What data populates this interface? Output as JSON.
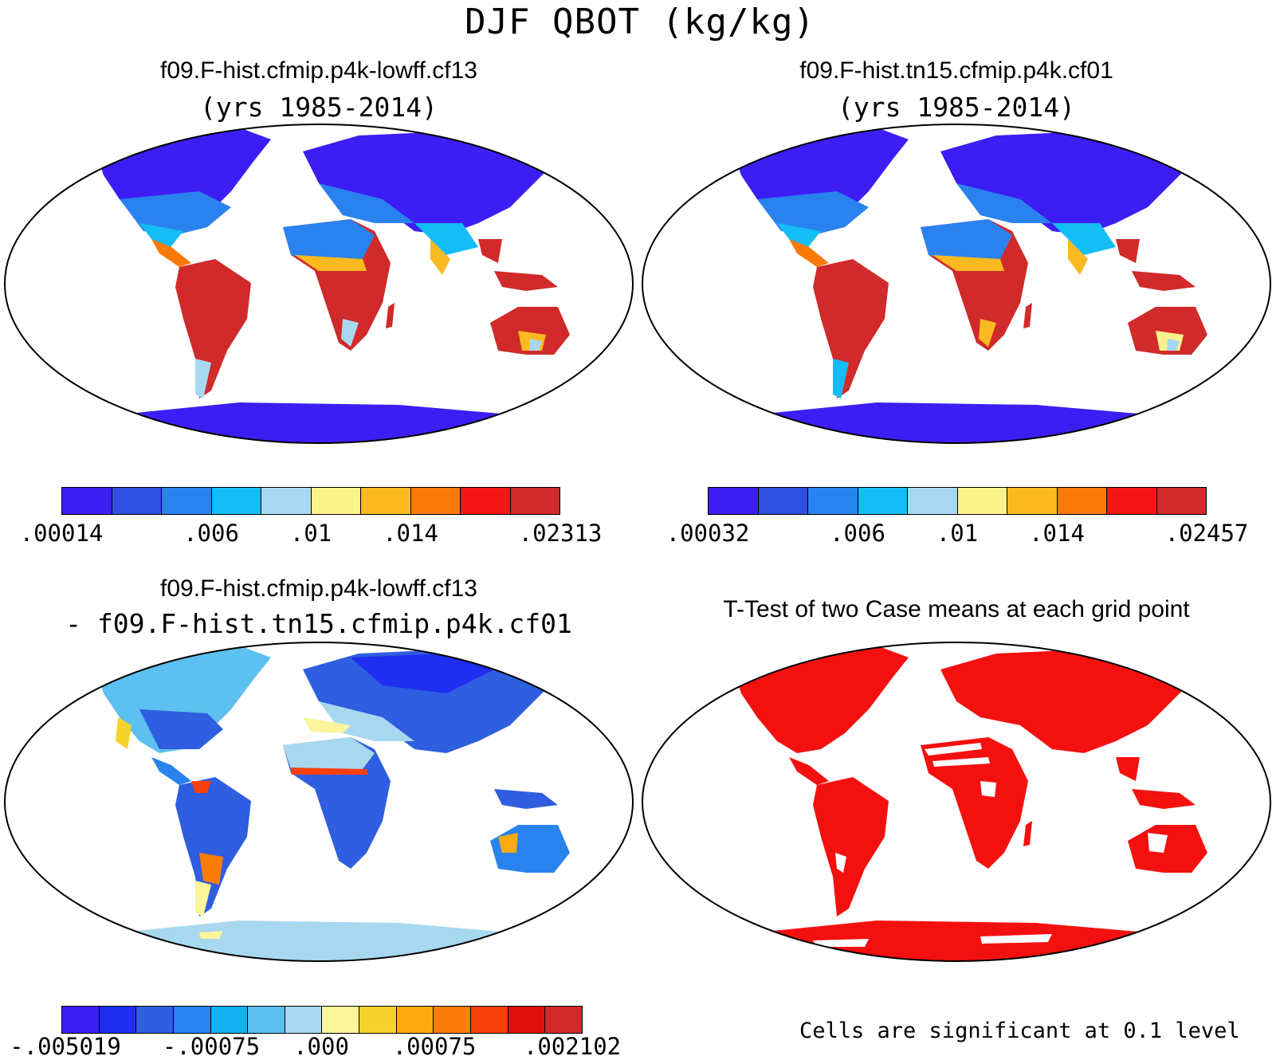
{
  "figure": {
    "title": "DJF QBOT (kg/kg)"
  },
  "panels": [
    {
      "id": "top-left",
      "title_line1": "f09.F-hist.cfmip.p4k-lowff.cf13",
      "title_line2": "(yrs 1985-2014)",
      "colorbar": {
        "colors": [
          "#3c1ef5",
          "#2f4fe0",
          "#2a82ef",
          "#14bdf5",
          "#a8d8f0",
          "#fbf28c",
          "#fbba1f",
          "#fb7a05",
          "#f5161a",
          "#d12a2a"
        ],
        "labels": [
          ".00014",
          ".006",
          ".01",
          ".014",
          ".02313"
        ]
      }
    },
    {
      "id": "top-right",
      "title_line1": "f09.F-hist.tn15.cfmip.p4k.cf01",
      "title_line2": "(yrs 1985-2014)",
      "colorbar": {
        "colors": [
          "#3c1ef5",
          "#2f4fe0",
          "#2a82ef",
          "#14bdf5",
          "#a8d8f0",
          "#fbf28c",
          "#fbba1f",
          "#fb7a05",
          "#f5161a",
          "#d12a2a"
        ],
        "labels": [
          ".00032",
          ".006",
          ".01",
          ".014",
          ".02457"
        ]
      }
    },
    {
      "id": "bottom-left",
      "title_line1": "f09.F-hist.cfmip.p4k-lowff.cf13",
      "title_line2": "- f09.F-hist.tn15.cfmip.p4k.cf01",
      "colorbar": {
        "colors": [
          "#3c1ef5",
          "#1f2ef0",
          "#2f5ee0",
          "#2a82ef",
          "#14b2f5",
          "#5cc0f0",
          "#a8d8f0",
          "#fbf59c",
          "#f6d22a",
          "#fbaa10",
          "#fb7d08",
          "#f8400c",
          "#e00f0f",
          "#d12a2a"
        ],
        "labels": [
          "-.005019",
          "-.00075",
          ".000",
          ".00075",
          ".002102"
        ]
      }
    },
    {
      "id": "bottom-right",
      "title_line1": "T-Test of two Case means at each grid point",
      "note": "Cells are significant at 0.1 level",
      "significance_color": "#f51010"
    }
  ]
}
